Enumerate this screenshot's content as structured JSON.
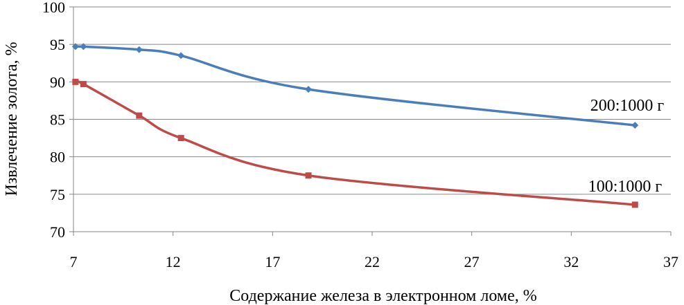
{
  "chart_data": {
    "type": "line",
    "title": "",
    "xlabel": "Содержание железа в электронном ломе, %",
    "ylabel": "Извлечение золота, %",
    "xlim": [
      7,
      37
    ],
    "ylim": [
      70,
      100
    ],
    "xticks": [
      "7",
      "12",
      "17",
      "22",
      "27",
      "32",
      "37"
    ],
    "yticks": [
      "70",
      "75",
      "80",
      "85",
      "90",
      "95",
      "100"
    ],
    "grid": "horizontal",
    "smooth": true,
    "series": [
      {
        "name": "200:1000 г",
        "color": "#4a7ebb",
        "marker": "diamond",
        "x": [
          7.1,
          7.5,
          10.3,
          12.4,
          18.8,
          35.2
        ],
        "y": [
          94.7,
          94.7,
          94.3,
          93.5,
          89.0,
          84.2
        ]
      },
      {
        "name": "100:1000 г",
        "color": "#be4b48",
        "marker": "square",
        "x": [
          7.1,
          7.5,
          10.3,
          12.4,
          18.8,
          35.2
        ],
        "y": [
          90.0,
          89.7,
          85.5,
          82.5,
          77.5,
          73.6
        ]
      }
    ]
  }
}
